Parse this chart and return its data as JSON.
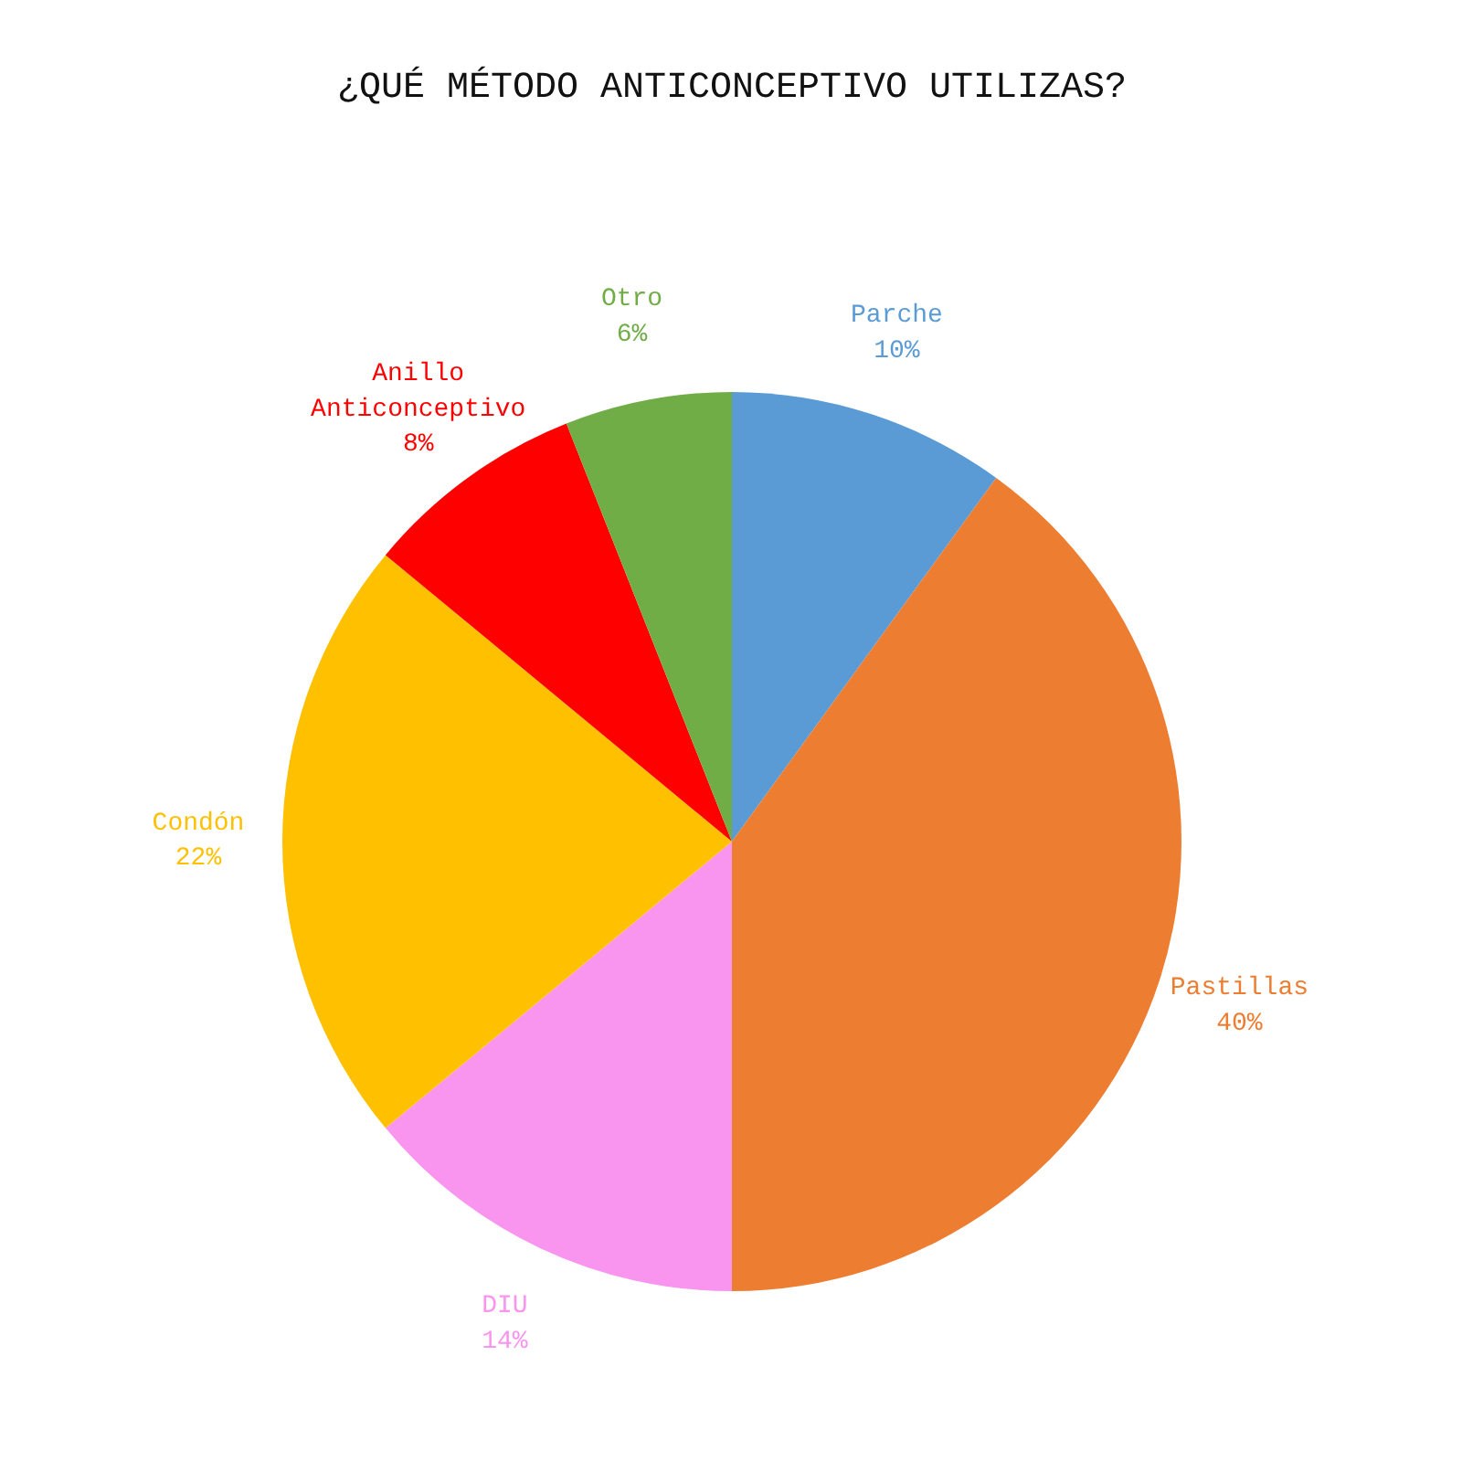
{
  "chart_data": {
    "type": "pie",
    "title": "¿QUÉ MÉTODO ANTICONCEPTIVO UTILIZAS?",
    "categories": [
      "Parche",
      "Pastillas",
      "DIU",
      "Condón",
      "Anillo Anticonceptivo",
      "Otro"
    ],
    "values": [
      10,
      40,
      14,
      22,
      8,
      6
    ],
    "colors": [
      "#5b9bd5",
      "#ed7d31",
      "#f995ee",
      "#ffc000",
      "#ff0000",
      "#70ad47"
    ],
    "value_labels": [
      "10%",
      "40%",
      "14%",
      "22%",
      "8%",
      "6%"
    ]
  }
}
